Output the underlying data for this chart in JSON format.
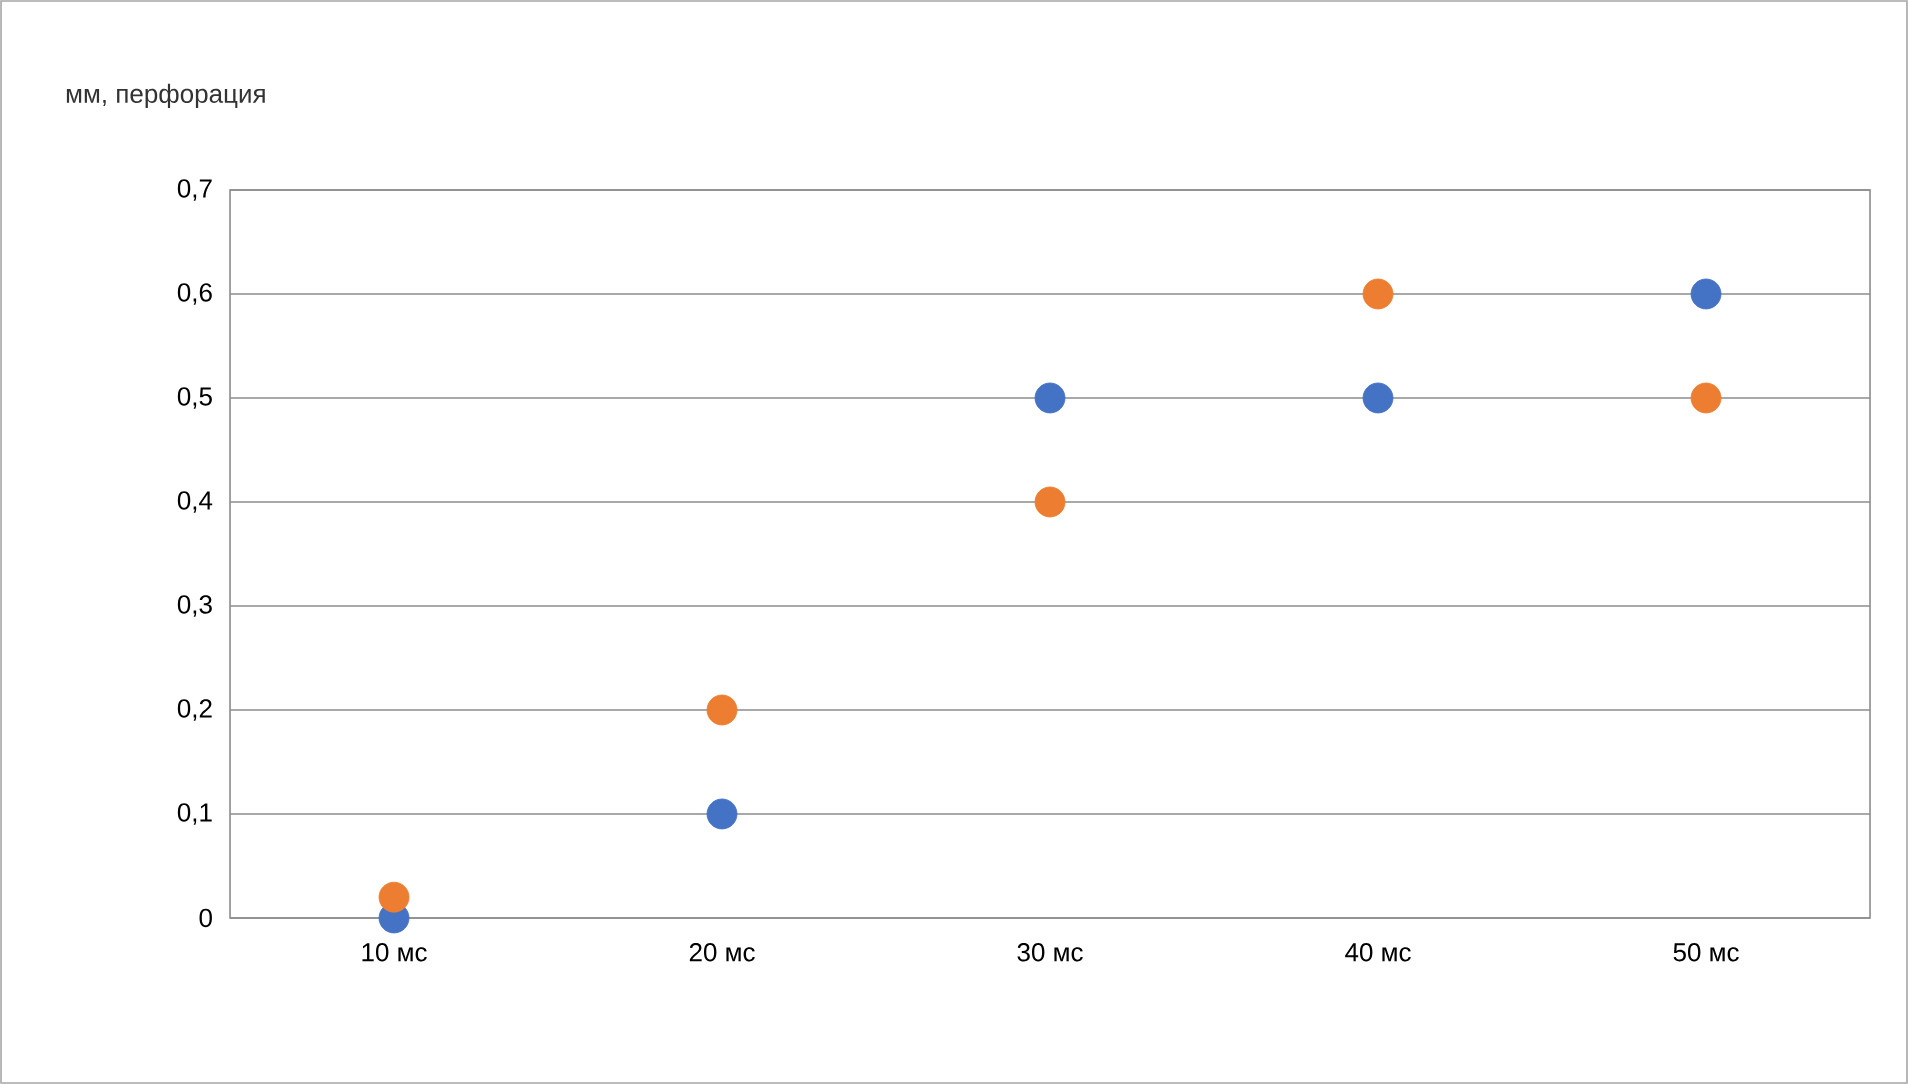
{
  "chart_data": {
    "type": "scatter",
    "title": "мм, перфорация",
    "categories": [
      "10 мс",
      "20 мс",
      "30 мс",
      "40 мс",
      "50 мс"
    ],
    "series": [
      {
        "color": "#4472c4",
        "values": [
          0,
          0.1,
          0.5,
          0.5,
          0.6
        ]
      },
      {
        "color": "#ed7d31",
        "values": [
          0.02,
          0.2,
          0.4,
          0.6,
          0.5
        ]
      }
    ],
    "ylim": [
      0,
      0.7
    ],
    "yticks": [
      0,
      {
        "value": 0.1,
        "label": "0,1"
      },
      {
        "value": 0.2,
        "label": "0,2"
      },
      {
        "value": 0.3,
        "label": "0,3"
      },
      {
        "value": 0.4,
        "label": "0,4"
      },
      {
        "value": 0.5,
        "label": "0,5"
      },
      {
        "value": 0.6,
        "label": "0,6"
      },
      {
        "value": 0.7,
        "label": "0,7"
      }
    ],
    "grid": "y",
    "marker": "circle"
  }
}
